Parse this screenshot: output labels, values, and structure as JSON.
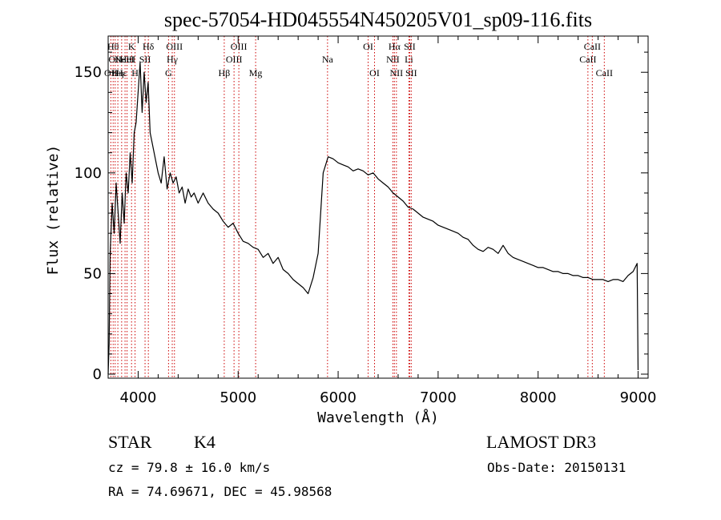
{
  "chart_data": {
    "type": "line",
    "title": "spec-57054-HD045554N450205V01_sp09-116.fits",
    "xlabel": "Wavelength (Å)",
    "ylabel": "Flux (relative)",
    "xlim": [
      3700,
      9100
    ],
    "ylim": [
      -2,
      168
    ],
    "x_ticks": [
      4000,
      5000,
      6000,
      7000,
      8000,
      9000
    ],
    "y_ticks": [
      0,
      50,
      100,
      150
    ],
    "series": [
      {
        "x": [
          3700,
          3710,
          3720,
          3740,
          3760,
          3780,
          3800,
          3820,
          3840,
          3860,
          3880,
          3900,
          3920,
          3940,
          3960,
          3980,
          4000,
          4020,
          4040,
          4060,
          4080,
          4100,
          4120,
          4140,
          4160,
          4180,
          4200,
          4230,
          4260,
          4290,
          4320,
          4350,
          4380,
          4410,
          4440,
          4470,
          4500,
          4530,
          4560,
          4600,
          4650,
          4700,
          4750,
          4800,
          4850,
          4900,
          4950,
          5000,
          5050,
          5100,
          5150,
          5200,
          5250,
          5300,
          5350,
          5400,
          5450,
          5500,
          5550,
          5600,
          5650,
          5700,
          5750,
          5800,
          5850,
          5900,
          5950,
          6000,
          6050,
          6100,
          6150,
          6200,
          6250,
          6300,
          6350,
          6400,
          6450,
          6500,
          6550,
          6600,
          6650,
          6700,
          6750,
          6800,
          6850,
          6900,
          6950,
          7000,
          7050,
          7100,
          7150,
          7200,
          7250,
          7300,
          7350,
          7400,
          7450,
          7500,
          7550,
          7600,
          7650,
          7700,
          7750,
          7800,
          7850,
          7900,
          7950,
          8000,
          8050,
          8100,
          8150,
          8200,
          8250,
          8300,
          8350,
          8400,
          8450,
          8500,
          8550,
          8600,
          8650,
          8700,
          8750,
          8800,
          8850,
          8900,
          8950,
          8990,
          9000
        ],
        "y": [
          0,
          15,
          60,
          85,
          70,
          95,
          80,
          65,
          90,
          75,
          100,
          90,
          110,
          95,
          120,
          125,
          140,
          155,
          130,
          150,
          135,
          145,
          120,
          115,
          110,
          105,
          100,
          95,
          108,
          92,
          100,
          95,
          98,
          90,
          93,
          85,
          92,
          88,
          90,
          85,
          90,
          85,
          82,
          80,
          76,
          73,
          75,
          70,
          66,
          65,
          63,
          62,
          58,
          60,
          55,
          58,
          52,
          50,
          47,
          45,
          43,
          40,
          48,
          60,
          100,
          108,
          107,
          105,
          104,
          103,
          101,
          102,
          101,
          99,
          100,
          97,
          95,
          93,
          90,
          88,
          86,
          83,
          82,
          80,
          78,
          77,
          76,
          74,
          73,
          72,
          71,
          70,
          68,
          67,
          64,
          62,
          61,
          63,
          62,
          60,
          64,
          60,
          58,
          57,
          56,
          55,
          54,
          53,
          53,
          52,
          51,
          51,
          50,
          50,
          49,
          49,
          48,
          48,
          47,
          47,
          47,
          46,
          47,
          47,
          46,
          49,
          51,
          55,
          2
        ]
      }
    ],
    "grid": false,
    "legend": "none",
    "line_color": "#000000",
    "marker_color": "#cc0000",
    "line_markers": [
      {
        "x": 3727,
        "label": "OII",
        "row": 3
      },
      {
        "x": 3750,
        "label": "Hθ",
        "row": 1
      },
      {
        "x": 3770,
        "label": "OII",
        "row": 2
      },
      {
        "x": 3797,
        "label": "Hη",
        "row": 3
      },
      {
        "x": 3835,
        "label": "Hε",
        "row": 3
      },
      {
        "x": 3869,
        "label": "NeIII",
        "row": 2
      },
      {
        "x": 3889,
        "label": "HeI",
        "row": 2
      },
      {
        "x": 3934,
        "label": "K",
        "row": 1
      },
      {
        "x": 3969,
        "label": "H",
        "row": 3
      },
      {
        "x": 4069,
        "label": "SII",
        "row": 2
      },
      {
        "x": 4102,
        "label": "Hδ",
        "row": 1
      },
      {
        "x": 4304,
        "label": "G",
        "row": 3
      },
      {
        "x": 4341,
        "label": "Hγ",
        "row": 2
      },
      {
        "x": 4363,
        "label": "OIII",
        "row": 1
      },
      {
        "x": 4861,
        "label": "Hβ",
        "row": 3
      },
      {
        "x": 4959,
        "label": "OIII",
        "row": 2
      },
      {
        "x": 5007,
        "label": "OIII",
        "row": 1
      },
      {
        "x": 5175,
        "label": "Mg",
        "row": 3
      },
      {
        "x": 5894,
        "label": "Na",
        "row": 2
      },
      {
        "x": 6300,
        "label": "OI",
        "row": 1
      },
      {
        "x": 6364,
        "label": "OI",
        "row": 3
      },
      {
        "x": 6548,
        "label": "NII",
        "row": 2
      },
      {
        "x": 6563,
        "label": "Hα",
        "row": 1
      },
      {
        "x": 6583,
        "label": "NII",
        "row": 3
      },
      {
        "x": 6708,
        "label": "Li",
        "row": 2
      },
      {
        "x": 6716,
        "label": "SII",
        "row": 1
      },
      {
        "x": 6731,
        "label": "SII",
        "row": 3
      },
      {
        "x": 8498,
        "label": "CaII",
        "row": 2
      },
      {
        "x": 8542,
        "label": "CaII",
        "row": 1
      },
      {
        "x": 8662,
        "label": "CaII",
        "row": 3
      }
    ]
  },
  "info": {
    "class": "STAR",
    "subclass": "K4",
    "survey": "LAMOST DR3",
    "cz": "cz = 79.8 ± 16.0 km/s",
    "obs_date": "Obs-Date: 20150131",
    "radec": "RA =  74.69671, DEC =  45.98568"
  }
}
